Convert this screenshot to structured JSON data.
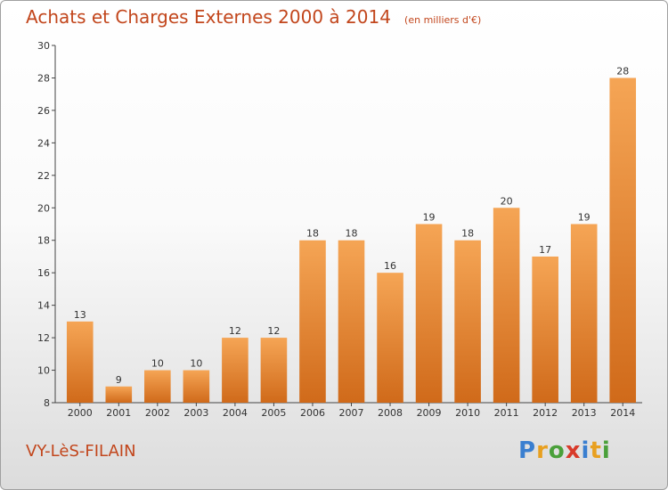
{
  "title": "Achats et Charges Externes 2000 à 2014",
  "subtitle": "(en milliers d'€)",
  "town": "VY-LèS-FILAIN",
  "logo": {
    "letters": [
      "P",
      "r",
      "o",
      "x",
      "i",
      "t",
      "i"
    ]
  },
  "colors": {
    "bar_top": "#f5a555",
    "bar_bottom": "#d06a1a",
    "title": "#c2461c"
  },
  "chart_data": {
    "type": "bar",
    "title": "Achats et Charges Externes 2000 à 2014",
    "subtitle": "(en milliers d'€)",
    "xlabel": "",
    "ylabel": "",
    "categories": [
      "2000",
      "2001",
      "2002",
      "2003",
      "2004",
      "2005",
      "2006",
      "2007",
      "2008",
      "2009",
      "2010",
      "2011",
      "2012",
      "2013",
      "2014"
    ],
    "values": [
      13,
      9,
      10,
      10,
      12,
      12,
      18,
      18,
      16,
      19,
      18,
      20,
      17,
      19,
      28
    ],
    "ylim": [
      8,
      30
    ],
    "yticks": [
      8,
      10,
      12,
      14,
      16,
      18,
      20,
      22,
      24,
      26,
      28,
      30
    ],
    "grid": false,
    "legend": "none"
  }
}
